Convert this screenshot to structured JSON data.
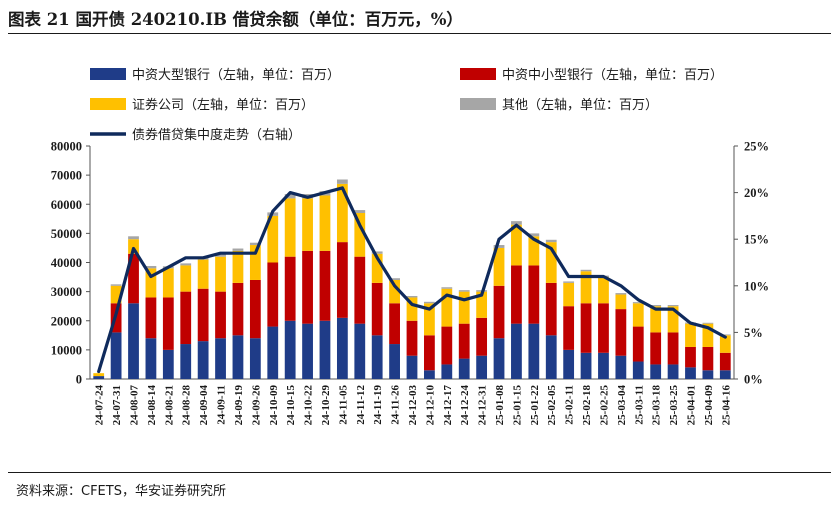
{
  "header": {
    "title": "图表 21  国开债 240210.IB 借贷余额（单位：百万元，%）",
    "source": "资料来源：CFETS，华安证券研究所"
  },
  "chart_data": {
    "type": "bar",
    "stacked": true,
    "secondary_line": true,
    "legend_position": "top",
    "colors": {
      "big_banks": "#1f3c88",
      "small_banks": "#c00000",
      "securities": "#ffc000",
      "others": "#a6a6a6",
      "concentration": "#0f2a5c"
    },
    "y_left": {
      "min": 0,
      "max": 80000,
      "ticks": [
        "0",
        "10000",
        "20000",
        "30000",
        "40000",
        "50000",
        "60000",
        "70000",
        "80000"
      ]
    },
    "y_right": {
      "min": 0,
      "max": 25,
      "ticks": [
        "0%",
        "5%",
        "10%",
        "15%",
        "20%",
        "25%"
      ]
    },
    "x_tick_labels": [
      "24-07-24",
      "24-07-31",
      "24-08-07",
      "24-08-14",
      "24-08-21",
      "24-08-28",
      "24-09-04",
      "24-09-11",
      "24-09-19",
      "24-09-26",
      "24-10-09",
      "24-10-15",
      "24-10-22",
      "24-10-29",
      "24-11-05",
      "24-11-12",
      "24-11-19",
      "24-11-26",
      "24-12-03",
      "24-12-10",
      "24-12-17",
      "24-12-24",
      "24-12-31",
      "25-01-08",
      "25-01-15",
      "25-01-22",
      "25-02-05",
      "25-02-11",
      "25-02-18",
      "25-02-25",
      "25-03-04",
      "25-03-11",
      "25-03-18",
      "25-03-25",
      "25-04-01",
      "25-04-09",
      "25-04-16"
    ],
    "legend": [
      {
        "key": "big_banks",
        "label": "中资大型银行（左轴，单位：百万）",
        "kind": "bar"
      },
      {
        "key": "small_banks",
        "label": "中资中小型银行（左轴，单位：百万）",
        "kind": "bar"
      },
      {
        "key": "securities",
        "label": "证券公司（左轴，单位：百万）",
        "kind": "bar"
      },
      {
        "key": "others",
        "label": "其他（左轴，单位：百万）",
        "kind": "bar"
      },
      {
        "key": "concentration",
        "label": "债券借贷集中度走势（右轴）",
        "kind": "line"
      }
    ],
    "series": [
      {
        "key": "big_banks",
        "axis": "left",
        "values": [
          1000,
          16000,
          26000,
          14000,
          10000,
          12000,
          13000,
          14000,
          15000,
          14000,
          18000,
          20000,
          19000,
          20000,
          21000,
          19000,
          15000,
          12000,
          8000,
          3000,
          5000,
          7000,
          8000,
          14000,
          19000,
          19000,
          15000,
          10000,
          9000,
          9000,
          8000,
          6000,
          5000,
          5000,
          4000,
          3000,
          3000
        ]
      },
      {
        "key": "small_banks",
        "axis": "left",
        "values": [
          0,
          10000,
          17000,
          14000,
          18000,
          18000,
          18000,
          16000,
          18000,
          20000,
          22000,
          22000,
          25000,
          24000,
          26000,
          23000,
          18000,
          14000,
          12000,
          12000,
          13000,
          12000,
          13000,
          18000,
          20000,
          20000,
          18000,
          15000,
          17000,
          17000,
          16000,
          12000,
          11000,
          11000,
          7000,
          8000,
          6000
        ]
      },
      {
        "key": "securities",
        "axis": "left",
        "values": [
          1000,
          6000,
          5000,
          10000,
          10000,
          9000,
          10000,
          12000,
          11000,
          12000,
          16000,
          20000,
          18000,
          19000,
          20000,
          15000,
          10000,
          8000,
          8000,
          11000,
          13000,
          11000,
          9000,
          13000,
          14000,
          10000,
          14000,
          8000,
          11000,
          9000,
          5000,
          8000,
          9000,
          9000,
          8000,
          8000,
          6000
        ]
      },
      {
        "key": "others",
        "axis": "left",
        "values": [
          0,
          500,
          1000,
          800,
          700,
          700,
          800,
          800,
          800,
          800,
          1200,
          1500,
          1500,
          1500,
          1500,
          1000,
          800,
          600,
          500,
          500,
          500,
          500,
          500,
          1000,
          1200,
          1000,
          800,
          500,
          500,
          500,
          500,
          400,
          400,
          400,
          400,
          300,
          300
        ]
      },
      {
        "key": "concentration",
        "axis": "right",
        "values": [
          0.8,
          7.0,
          14.0,
          11.0,
          12.0,
          13.0,
          13.0,
          13.5,
          13.5,
          13.5,
          18.0,
          20.0,
          19.5,
          20.0,
          20.5,
          16.5,
          13.0,
          10.0,
          8.0,
          7.5,
          9.0,
          8.5,
          9.0,
          15.0,
          16.5,
          15.0,
          14.0,
          11.0,
          11.0,
          11.0,
          10.0,
          8.5,
          7.5,
          7.5,
          6.0,
          5.5,
          4.5
        ]
      }
    ]
  }
}
